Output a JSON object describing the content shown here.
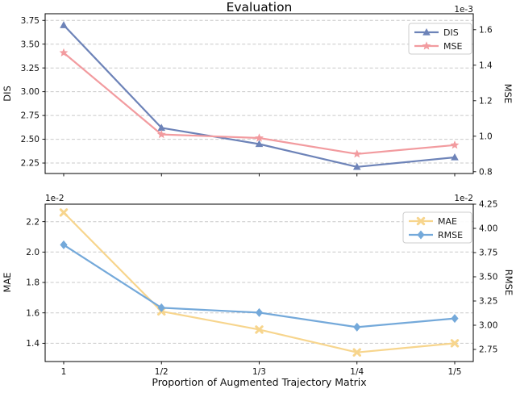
{
  "chart_data": [
    {
      "type": "line",
      "title": "Evaluation",
      "xlabel": "",
      "categories": [
        "1",
        "1/2",
        "1/3",
        "1/4",
        "1/5"
      ],
      "grid": true,
      "legend_position": "upper right",
      "left_axis": {
        "label": "DIS",
        "lim": [
          2.14,
          3.82
        ],
        "tick_values": [
          2.25,
          2.5,
          2.75,
          3.0,
          3.25,
          3.5,
          3.75
        ],
        "tick_labels": [
          "2.25",
          "2.50",
          "2.75",
          "3.00",
          "3.25",
          "3.50",
          "3.75"
        ],
        "offset_label": ""
      },
      "right_axis": {
        "label": "MSE",
        "lim": [
          0.79,
          1.69
        ],
        "tick_values": [
          0.8,
          1.0,
          1.2,
          1.4,
          1.6
        ],
        "tick_labels": [
          "0.8",
          "1.0",
          "1.2",
          "1.4",
          "1.6"
        ],
        "offset_label": "1e-3"
      },
      "series": [
        {
          "name": "DIS",
          "axis": "left",
          "marker": "triangle",
          "color": "#6d83b8",
          "values": [
            3.7,
            2.62,
            2.45,
            2.21,
            2.31
          ]
        },
        {
          "name": "MSE",
          "axis": "right",
          "marker": "star",
          "color": "#f29b9f",
          "values": [
            1.47,
            1.01,
            0.99,
            0.9,
            0.95
          ]
        }
      ]
    },
    {
      "type": "line",
      "title": "",
      "xlabel": "Proportion of Augmented Trajectory Matrix",
      "categories": [
        "1",
        "1/2",
        "1/3",
        "1/4",
        "1/5"
      ],
      "grid": true,
      "legend_position": "upper right",
      "left_axis": {
        "label": "MAE",
        "lim": [
          1.28,
          2.315
        ],
        "tick_values": [
          1.4,
          1.6,
          1.8,
          2.0,
          2.2
        ],
        "tick_labels": [
          "1.4",
          "1.6",
          "1.8",
          "2.0",
          "2.2"
        ],
        "offset_label": "1e-2"
      },
      "right_axis": {
        "label": "RMSE",
        "lim": [
          2.625,
          4.25
        ],
        "tick_values": [
          2.75,
          3.0,
          3.25,
          3.5,
          3.75,
          4.0,
          4.25
        ],
        "tick_labels": [
          "2.75",
          "3.00",
          "3.25",
          "3.50",
          "3.75",
          "4.00",
          "4.25"
        ],
        "offset_label": "1e-2"
      },
      "series": [
        {
          "name": "MAE",
          "axis": "left",
          "marker": "x",
          "color": "#f7d58d",
          "values": [
            2.26,
            1.61,
            1.49,
            1.34,
            1.4
          ]
        },
        {
          "name": "RMSE",
          "axis": "right",
          "marker": "diamond",
          "color": "#74a9da",
          "values": [
            3.83,
            3.18,
            3.13,
            2.98,
            3.07
          ]
        }
      ]
    }
  ],
  "style": {
    "grid_color": "#c9c9c9",
    "spine_color": "#000000",
    "text_color": "#111111",
    "legend_border": "#cccccc"
  }
}
